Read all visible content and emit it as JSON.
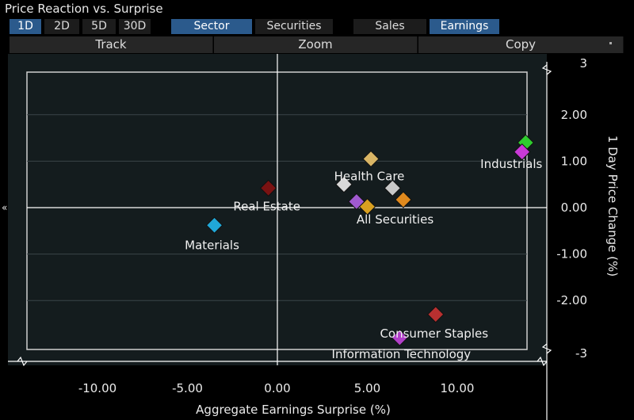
{
  "window": {
    "title": "Price Reaction vs. Surprise"
  },
  "period_buttons": [
    {
      "label": "1D",
      "active": true
    },
    {
      "label": "2D",
      "active": false
    },
    {
      "label": "5D",
      "active": false
    },
    {
      "label": "30D",
      "active": false
    }
  ],
  "view_buttons": [
    {
      "label": "Sector",
      "active": true
    },
    {
      "label": "Securities",
      "active": false
    }
  ],
  "metric_buttons": [
    {
      "label": "Sales",
      "active": false
    },
    {
      "label": "Earnings",
      "active": true
    }
  ],
  "tools": {
    "track": "Track",
    "zoom": "Zoom",
    "copy": "Copy"
  },
  "colors": {
    "active_button": "#2b5a8c",
    "background": "#000000",
    "plot_area": "#141c1e"
  },
  "chart_data": {
    "type": "scatter",
    "xlabel": "Aggregate Earnings Surprise (%)",
    "ylabel": "1 Day Price Change (%)",
    "xlim": [
      -14.5,
      15
    ],
    "ylim": [
      -3,
      3
    ],
    "xticks": [
      "-10.00",
      "-5.00",
      "0.00",
      "5.00",
      "10.00"
    ],
    "xtick_values": [
      -10,
      -5,
      0,
      5,
      10
    ],
    "yticks": [
      "3",
      "2.00",
      "1.00",
      "0.00",
      "-1.00",
      "-2.00",
      "-3"
    ],
    "ytick_values": [
      3,
      2,
      1,
      0,
      -1,
      -2,
      -3
    ],
    "points": [
      {
        "label": "Industrials",
        "x": 13.8,
        "y": 1.4,
        "color": "#2ecc2e"
      },
      {
        "label": "",
        "x": 13.6,
        "y": 1.2,
        "color": "#c83ad6"
      },
      {
        "label": "Health Care",
        "x": 5.2,
        "y": 1.05,
        "color": "#d9b565"
      },
      {
        "label": "",
        "x": 3.7,
        "y": 0.5,
        "color": "#d8d8d8"
      },
      {
        "label": "",
        "x": 6.4,
        "y": 0.42,
        "color": "#c8c8c8"
      },
      {
        "label": "Real Estate",
        "x": -0.5,
        "y": 0.42,
        "color": "#7a1212"
      },
      {
        "label": "",
        "x": 7.0,
        "y": 0.17,
        "color": "#e08a1e"
      },
      {
        "label": "",
        "x": 4.4,
        "y": 0.13,
        "color": "#a05ad0"
      },
      {
        "label": "All Securities",
        "x": 5.0,
        "y": 0.02,
        "color": "#d9a020"
      },
      {
        "label": "Materials",
        "x": -3.5,
        "y": -0.38,
        "color": "#20a8d8"
      },
      {
        "label": "Consumer Staples",
        "x": 8.8,
        "y": -2.3,
        "color": "#b83030"
      },
      {
        "label": "Information Technology",
        "x": 6.8,
        "y": -2.8,
        "color": "#b040c8"
      }
    ]
  }
}
